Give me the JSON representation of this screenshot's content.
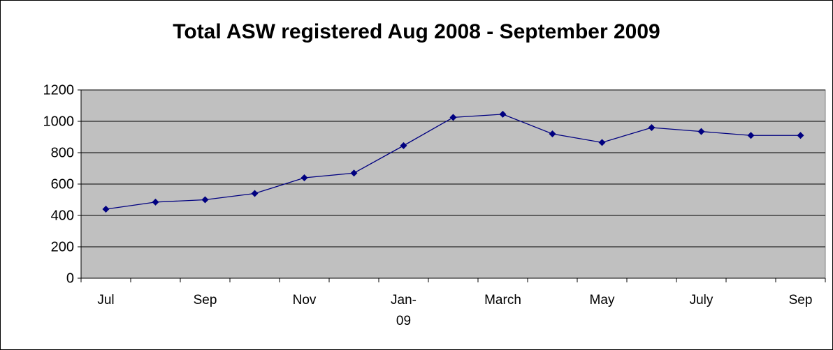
{
  "chart_data": {
    "type": "line",
    "title": "Total ASW registered Aug 2008 - September 2009",
    "categories": [
      "Jul",
      null,
      "Sep",
      null,
      "Nov",
      null,
      "Jan-09",
      null,
      "March",
      null,
      "May",
      null,
      "July",
      null,
      "Sep"
    ],
    "series": [
      {
        "name": "Total ASW registered",
        "color": "#000080",
        "values": [
          440,
          485,
          500,
          540,
          640,
          670,
          845,
          1025,
          1045,
          920,
          865,
          960,
          935,
          910,
          910
        ]
      }
    ],
    "ylim": [
      0,
      1200
    ],
    "yticks": [
      0,
      200,
      400,
      600,
      800,
      1000,
      1200
    ],
    "grid": true,
    "plot_background": "#c0c0c0"
  }
}
